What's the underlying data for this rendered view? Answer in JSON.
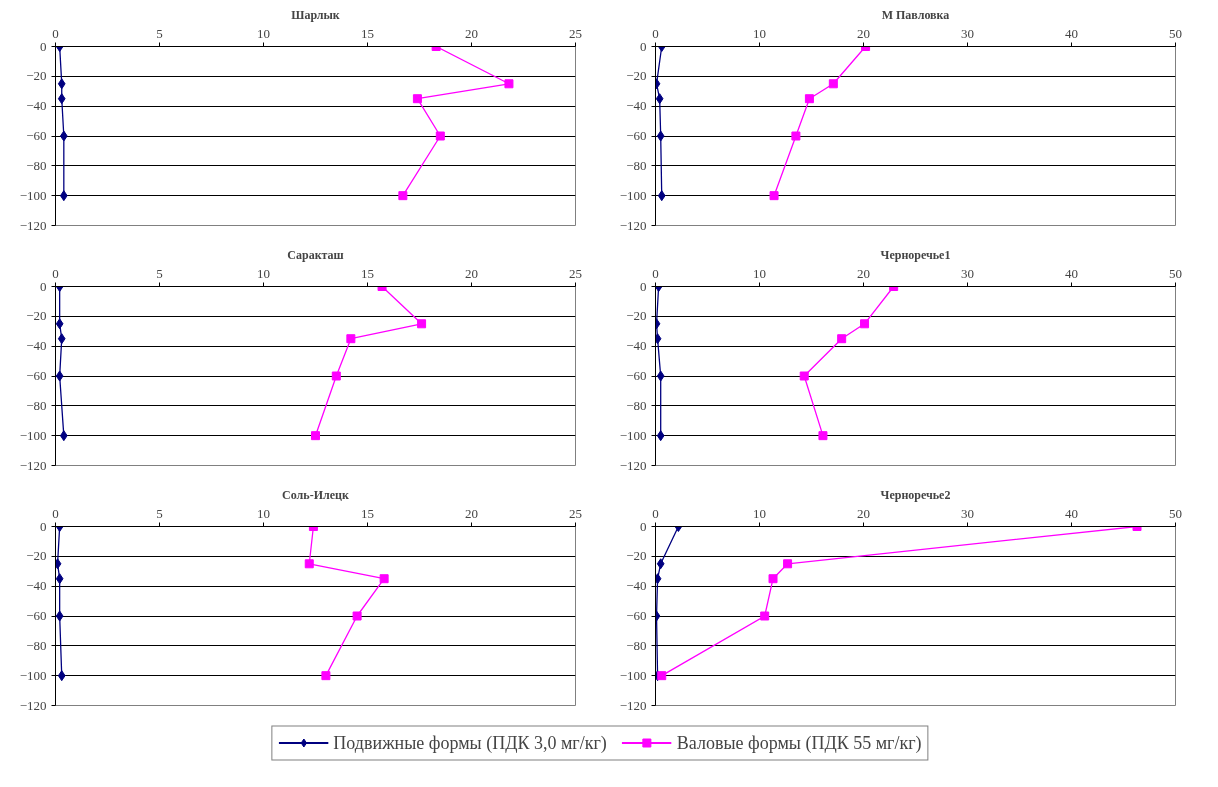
{
  "chart_data": [
    {
      "type": "line",
      "title": "Шарлык",
      "xlim": [
        0,
        25
      ],
      "xticks": [
        0,
        5,
        10,
        15,
        20,
        25
      ],
      "ylim": [
        -120,
        0
      ],
      "yticks": [
        -120,
        -100,
        -80,
        -60,
        -40,
        -20,
        0
      ],
      "grid": "y",
      "series": [
        {
          "color": "#000080",
          "marker": "diamond",
          "x": [
            0.2,
            0.3,
            0.3,
            0.4,
            0.4
          ],
          "values": [
            0,
            -25,
            -35,
            -60,
            -100
          ]
        },
        {
          "color": "#ff00ff",
          "marker": "square",
          "x": [
            18.3,
            21.8,
            17.4,
            18.5,
            16.7
          ],
          "values": [
            0,
            -25,
            -35,
            -60,
            -100
          ]
        }
      ]
    },
    {
      "type": "line",
      "title": "М Павловка",
      "xlim": [
        0,
        50
      ],
      "xticks": [
        0,
        10,
        20,
        30,
        40,
        50
      ],
      "ylim": [
        -120,
        0
      ],
      "yticks": [
        -120,
        -100,
        -80,
        -60,
        -40,
        -20,
        0
      ],
      "grid": "y",
      "series": [
        {
          "color": "#000080",
          "marker": "diamond",
          "x": [
            0.6,
            0.1,
            0.4,
            0.5,
            0.6
          ],
          "values": [
            0,
            -25,
            -35,
            -60,
            -100
          ]
        },
        {
          "color": "#ff00ff",
          "marker": "square",
          "x": [
            20.2,
            17.1,
            14.8,
            13.5,
            11.4
          ],
          "values": [
            0,
            -25,
            -35,
            -60,
            -100
          ]
        }
      ]
    },
    {
      "type": "line",
      "title": "Саракташ",
      "xlim": [
        0,
        25
      ],
      "xticks": [
        0,
        5,
        10,
        15,
        20,
        25
      ],
      "ylim": [
        -120,
        0
      ],
      "yticks": [
        -120,
        -100,
        -80,
        -60,
        -40,
        -20,
        0
      ],
      "grid": "y",
      "series": [
        {
          "color": "#000080",
          "marker": "diamond",
          "x": [
            0.2,
            0.2,
            0.3,
            0.2,
            0.4
          ],
          "values": [
            0,
            -25,
            -35,
            -60,
            -100
          ]
        },
        {
          "color": "#ff00ff",
          "marker": "square",
          "x": [
            15.7,
            17.6,
            14.2,
            13.5,
            12.5
          ],
          "values": [
            0,
            -25,
            -35,
            -60,
            -100
          ]
        }
      ]
    },
    {
      "type": "line",
      "title": "Черноречье1",
      "xlim": [
        0,
        50
      ],
      "xticks": [
        0,
        10,
        20,
        30,
        40,
        50
      ],
      "ylim": [
        -120,
        0
      ],
      "yticks": [
        -120,
        -100,
        -80,
        -60,
        -40,
        -20,
        0
      ],
      "grid": "y",
      "series": [
        {
          "color": "#000080",
          "marker": "diamond",
          "x": [
            0.3,
            0.1,
            0.2,
            0.5,
            0.5
          ],
          "values": [
            0,
            -25,
            -35,
            -60,
            -100
          ]
        },
        {
          "color": "#ff00ff",
          "marker": "square",
          "x": [
            22.9,
            20.1,
            17.9,
            14.3,
            16.1
          ],
          "values": [
            0,
            -25,
            -35,
            -60,
            -100
          ]
        }
      ]
    },
    {
      "type": "line",
      "title": "Соль-Илецк",
      "xlim": [
        0,
        25
      ],
      "xticks": [
        0,
        5,
        10,
        15,
        20,
        25
      ],
      "ylim": [
        -120,
        0
      ],
      "yticks": [
        -120,
        -100,
        -80,
        -60,
        -40,
        -20,
        0
      ],
      "grid": "y",
      "series": [
        {
          "color": "#000080",
          "marker": "diamond",
          "x": [
            0.2,
            0.1,
            0.2,
            0.2,
            0.3
          ],
          "values": [
            0,
            -25,
            -35,
            -60,
            -100
          ]
        },
        {
          "color": "#ff00ff",
          "marker": "square",
          "x": [
            12.4,
            12.2,
            15.8,
            14.5,
            13.0
          ],
          "values": [
            0,
            -25,
            -35,
            -60,
            -100
          ]
        }
      ]
    },
    {
      "type": "line",
      "title": "Черноречье2",
      "xlim": [
        0,
        50
      ],
      "xticks": [
        0,
        10,
        20,
        30,
        40,
        50
      ],
      "ylim": [
        -120,
        0
      ],
      "yticks": [
        -120,
        -100,
        -80,
        -60,
        -40,
        -20,
        0
      ],
      "grid": "y",
      "legend": "bottom",
      "series": [
        {
          "name": "Подвижные формы (ПДК 3,0 мг/кг)",
          "color": "#000080",
          "marker": "diamond",
          "x": [
            2.2,
            0.5,
            0.2,
            0.1,
            0.2
          ],
          "values": [
            0,
            -25,
            -35,
            -60,
            -100
          ]
        },
        {
          "name": "Валовые формы (ПДК 55 мг/кг)",
          "color": "#ff00ff",
          "marker": "square",
          "x": [
            46.3,
            12.7,
            11.3,
            10.5,
            0.6
          ],
          "values": [
            0,
            -25,
            -35,
            -60,
            -100
          ]
        }
      ]
    }
  ]
}
